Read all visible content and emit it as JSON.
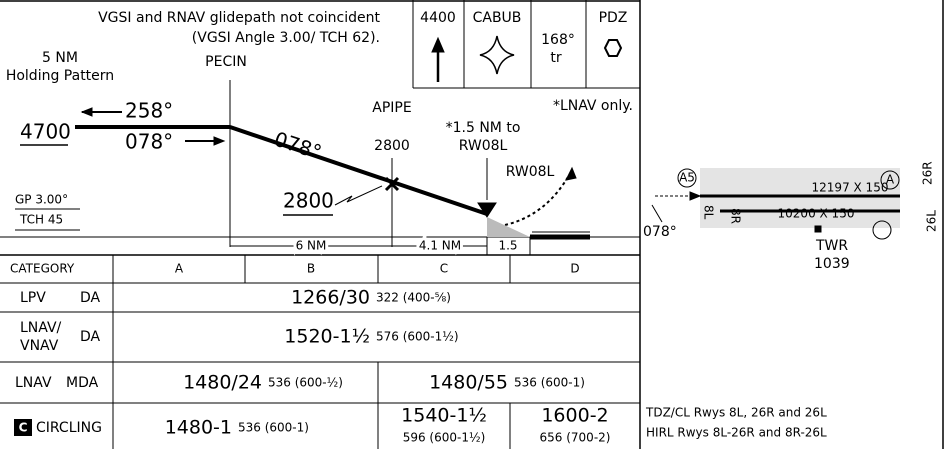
{
  "profile": {
    "notes": [
      "VGSI and RNAV glidepath not coincident",
      "(VGSI Angle 3.00/ TCH 62)."
    ],
    "msa_box": {
      "altitude": "4400",
      "fix": "CABUB",
      "course": "168°",
      "turn": "tr",
      "navaid": "PDZ"
    },
    "holding": [
      "5 NM",
      "Holding Pattern"
    ],
    "pecin": "PECIN",
    "apipe": "APIPE",
    "apipe_alt": "2800",
    "rw_fix_note": [
      "*1.5 NM to",
      "RW08L"
    ],
    "runway_fix": "RW08L",
    "lnav_only": "*LNAV only.",
    "hold_alt": "4700",
    "hold_inbound": "258°",
    "hold_outbound": "078°",
    "final_course": "078°",
    "stepdown_alt": "2800",
    "glidepath": "GP 3.00°",
    "tch": "TCH 45",
    "distances": [
      "6 NM",
      "4.1 NM",
      "1.5"
    ]
  },
  "minimums": {
    "header": [
      "CATEGORY",
      "A",
      "B",
      "C",
      "D"
    ],
    "rows": [
      {
        "label": [
          "LPV",
          "DA"
        ],
        "cells": [
          {
            "mins": "1266/30",
            "hat": "322 (400-⅝)"
          }
        ]
      },
      {
        "label": [
          "LNAV/",
          "VNAV",
          "DA"
        ],
        "cells": [
          {
            "mins": "1520-1½",
            "hat": "576 (600-1½)"
          }
        ]
      },
      {
        "label": [
          "LNAV",
          "MDA"
        ],
        "cells": [
          {
            "mins": "1480/24",
            "hat": "536 (600-½)"
          },
          {
            "mins": "1480/55",
            "hat": "536 (600-1)"
          }
        ]
      },
      {
        "icon": "C",
        "label": [
          "CIRCLING"
        ],
        "cells": [
          {
            "mins": "1480-1",
            "hat": "536 (600-1)"
          },
          {
            "mins": "1540-1½",
            "hat": "596 (600-1½)"
          },
          {
            "mins": "1600-2",
            "hat": "656 (700-2)"
          }
        ]
      }
    ]
  },
  "airport": {
    "runway_north": "12197 X 150",
    "runway_south": "10200 X 150",
    "rwy_8l": "8L",
    "rwy_8r": "8R",
    "rwy_26r": "26R",
    "rwy_26l": "26L",
    "course": "078°",
    "tower": "TWR",
    "tower_elev": "1039",
    "lighting_a5": "A5",
    "lighting_a": "A",
    "notes": [
      "TDZ/CL Rwys 8L, 26R and 26L",
      "HIRL Rwys 8L-26R and 8R-26L"
    ]
  }
}
